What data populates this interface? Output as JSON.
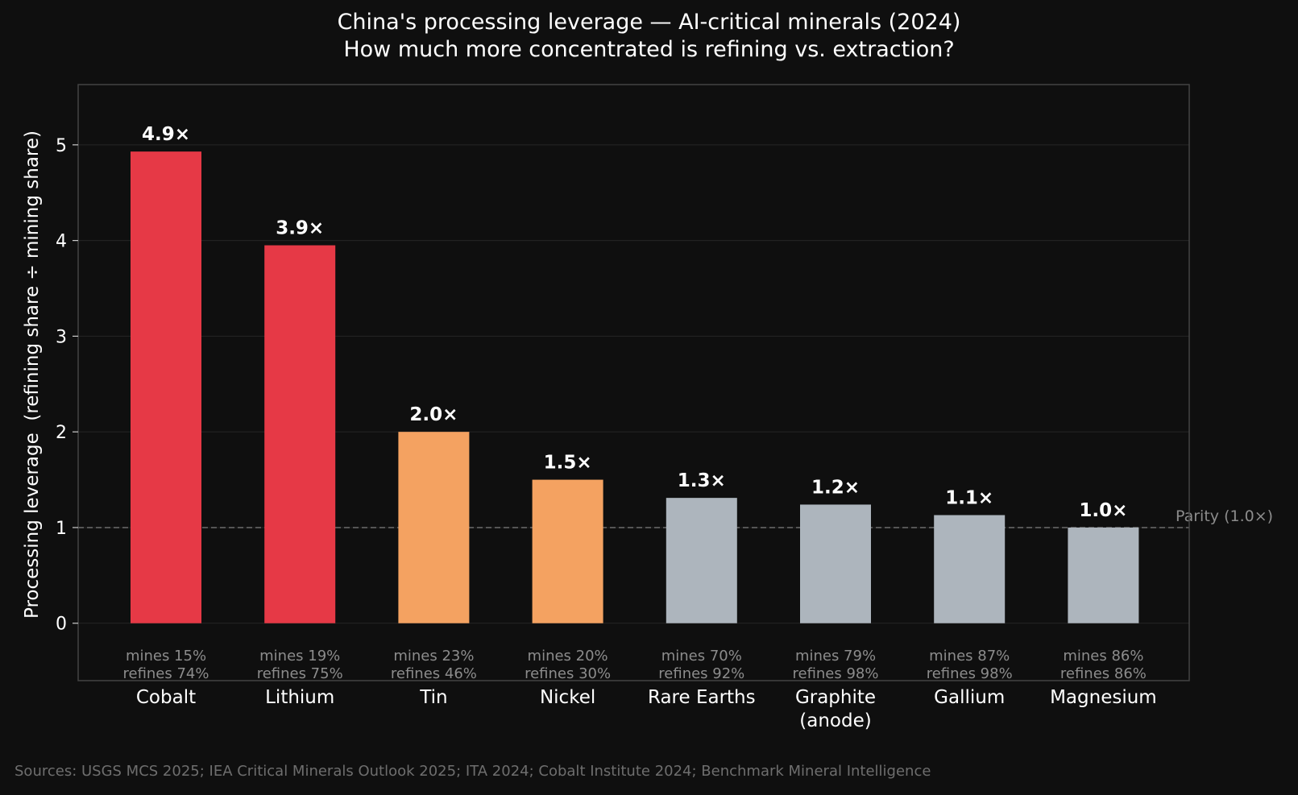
{
  "chart_data": {
    "type": "bar",
    "title": "China's processing leverage — AI-critical minerals (2024)",
    "subtitle": "How much more concentrated is refining vs. extraction?",
    "ylabel": "Processing leverage  (refining share ÷ mining share)",
    "xlabel": "",
    "ylim": [
      -0.6,
      5.63
    ],
    "yticks": [
      0,
      1,
      2,
      3,
      4,
      5
    ],
    "grid": true,
    "categories": [
      "Cobalt",
      "Lithium",
      "Tin",
      "Nickel",
      "Rare Earths",
      "Graphite\n(anode)",
      "Gallium",
      "Magnesium"
    ],
    "values": [
      4.93,
      3.95,
      2.0,
      1.5,
      1.31,
      1.24,
      1.13,
      1.0
    ],
    "data_labels": [
      "4.9×",
      "3.9×",
      "2.0×",
      "1.5×",
      "1.3×",
      "1.2×",
      "1.1×",
      "1.0×"
    ],
    "sublabels": [
      [
        "mines 15%",
        "refines 74%"
      ],
      [
        "mines 19%",
        "refines 75%"
      ],
      [
        "mines 23%",
        "refines 46%"
      ],
      [
        "mines 20%",
        "refines 30%"
      ],
      [
        "mines 70%",
        "refines 92%"
      ],
      [
        "mines 79%",
        "refines 98%"
      ],
      [
        "mines 87%",
        "refines 98%"
      ],
      [
        "mines 86%",
        "refines 86%"
      ]
    ],
    "bar_colors": [
      "#e63946",
      "#e63946",
      "#f4a261",
      "#f4a261",
      "#adb5bd",
      "#adb5bd",
      "#adb5bd",
      "#adb5bd"
    ],
    "reference_line": {
      "value": 1.0,
      "label": "Parity  (1.0×)",
      "style": "dashed"
    }
  },
  "colors": {
    "background": "#0f0f0f",
    "axes_edge": "#444444",
    "grid": "#262626",
    "text": "#ffffff",
    "muted_text": "#8c8c8c",
    "source_text": "#6e6e6e"
  },
  "source": "Sources: USGS MCS 2025; IEA Critical Minerals Outlook 2025; ITA 2024; Cobalt Institute 2024; Benchmark Mineral Intelligence"
}
